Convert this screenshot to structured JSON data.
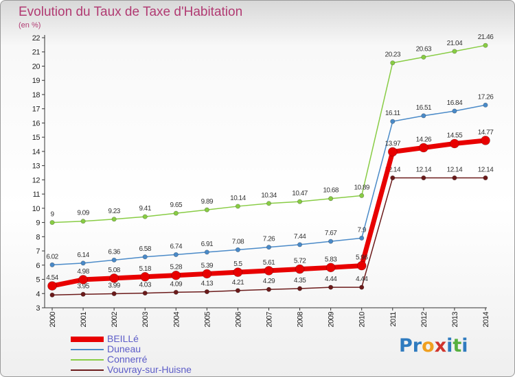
{
  "header": {
    "title": "Evolution du Taux de Taxe d'Habitation",
    "unit": "(en %)"
  },
  "logo": {
    "letters": [
      "P",
      "r",
      "o",
      "x",
      "i",
      "t",
      "i"
    ],
    "colors": [
      "#2f7bbf",
      "#2f7bbf",
      "#f0a020",
      "#d0342c",
      "#2f7bbf",
      "#58b040",
      "#2f7bbf"
    ]
  },
  "chart_data": {
    "type": "line",
    "title": "Evolution du Taux de Taxe d'Habitation",
    "xlabel": "",
    "ylabel": "(en %)",
    "ylim": [
      3,
      22
    ],
    "grid": false,
    "legend_position": "bottom-left",
    "x": [
      "2000",
      "2001",
      "2002",
      "2003",
      "2004",
      "2005",
      "2006",
      "2007",
      "2008",
      "2009",
      "2010",
      "2011",
      "2012",
      "2013",
      "2014"
    ],
    "yticks": [
      3,
      4,
      5,
      6,
      7,
      8,
      9,
      10,
      11,
      12,
      13,
      14,
      15,
      16,
      17,
      18,
      19,
      20,
      21,
      22
    ],
    "series": [
      {
        "name": "Vouvray-sur-Huisne",
        "color": "#6b1a1a",
        "values": [
          3.9,
          3.95,
          3.99,
          4.03,
          4.09,
          4.13,
          4.21,
          4.29,
          4.35,
          4.44,
          4.44,
          12.14,
          12.14,
          12.14,
          12.14
        ],
        "labels": [
          "3.9",
          "3.95",
          "3.99",
          "4.03",
          "4.09",
          "4.13",
          "4.21",
          "4.29",
          "4.35",
          "4.44",
          "4.44",
          "12.14",
          "12.14",
          "12.14",
          "12.14"
        ]
      },
      {
        "name": "Connerré",
        "color": "#88cc44",
        "values": [
          9,
          9.09,
          9.23,
          9.41,
          9.65,
          9.89,
          10.14,
          10.34,
          10.47,
          10.68,
          10.89,
          20.23,
          20.63,
          21.04,
          21.46
        ],
        "labels": [
          "9",
          "9.09",
          "9.23",
          "9.41",
          "9.65",
          "9.89",
          "10.14",
          "10.34",
          "10.47",
          "10.68",
          "10.89",
          "20.23",
          "20.63",
          "21.04",
          "21.46"
        ]
      },
      {
        "name": "Duneau",
        "color": "#4a8ac8",
        "values": [
          6.02,
          6.14,
          6.36,
          6.58,
          6.74,
          6.91,
          7.08,
          7.26,
          7.44,
          7.67,
          7.9,
          16.11,
          16.51,
          16.84,
          17.26
        ],
        "labels": [
          "6.02",
          "6.14",
          "6.36",
          "6.58",
          "6.74",
          "6.91",
          "7.08",
          "7.26",
          "7.44",
          "7.67",
          "7.9",
          "16.11",
          "16.51",
          "16.84",
          "17.26"
        ]
      },
      {
        "name": "BEILLé",
        "color": "#e80000",
        "values": [
          4.54,
          4.98,
          5.08,
          5.18,
          5.28,
          5.39,
          5.5,
          5.61,
          5.72,
          5.83,
          5.96,
          13.97,
          14.26,
          14.55,
          14.77
        ],
        "labels": [
          "4.54",
          "4.98",
          "5.08",
          "5.18",
          "5.28",
          "5.39",
          "5.5",
          "5.61",
          "5.72",
          "5.83",
          "5.96",
          "13.97",
          "14.26",
          "14.55",
          "14.77"
        ]
      }
    ]
  }
}
